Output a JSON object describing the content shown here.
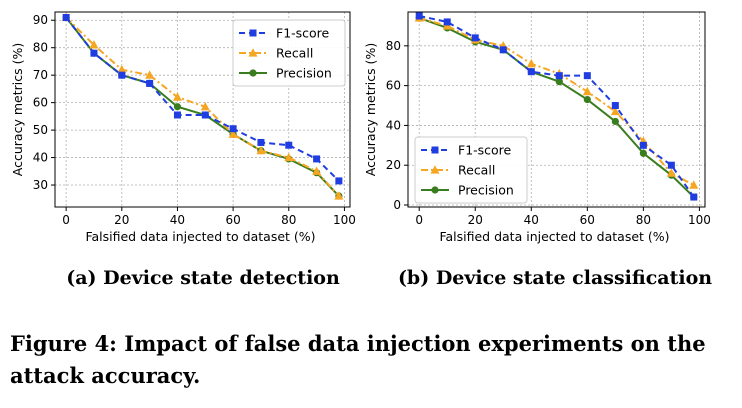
{
  "chart_data": [
    {
      "type": "line",
      "subcaption": "(a) Device state detection",
      "xlabel": "Falsified data injected to dataset (%)",
      "ylabel": "Accuracy metrics (%)",
      "xlim": [
        -4,
        102
      ],
      "ylim": [
        22,
        93
      ],
      "xticks": [
        0,
        20,
        40,
        60,
        80,
        100
      ],
      "yticks": [
        30,
        40,
        50,
        60,
        70,
        80,
        90
      ],
      "grid": true,
      "legend_position": "top-right",
      "x": [
        0,
        10,
        20,
        30,
        40,
        50,
        60,
        70,
        80,
        90,
        98
      ],
      "series": [
        {
          "name": "F1-score",
          "color": "#1f3de0",
          "linestyle": "dashed",
          "marker": "square",
          "values": [
            91,
            78,
            70,
            67,
            55.5,
            55.5,
            50.5,
            45.5,
            44.5,
            39.5,
            31.5
          ]
        },
        {
          "name": "Recall",
          "color": "#f5a623",
          "linestyle": "dashdot",
          "marker": "triangle",
          "values": [
            91,
            81,
            72,
            70,
            62,
            58.5,
            48.5,
            42.5,
            40,
            35,
            26
          ]
        },
        {
          "name": "Precision",
          "color": "#3a7d1e",
          "linestyle": "solid",
          "marker": "circle",
          "values": [
            91,
            78,
            70,
            67,
            58.5,
            55.5,
            48.5,
            42.5,
            39.5,
            34.5,
            26
          ]
        }
      ]
    },
    {
      "type": "line",
      "subcaption": "(b) Device state classification",
      "xlabel": "Falsified data injected to dataset (%)",
      "ylabel": "Accuracy metrics (%)",
      "xlim": [
        -4,
        102
      ],
      "ylim": [
        -1,
        97
      ],
      "xticks": [
        0,
        20,
        40,
        60,
        80,
        100
      ],
      "yticks": [
        0,
        20,
        40,
        60,
        80
      ],
      "grid": true,
      "legend_position": "bottom-left",
      "x": [
        0,
        10,
        20,
        30,
        40,
        50,
        60,
        70,
        80,
        90,
        98
      ],
      "series": [
        {
          "name": "F1-score",
          "color": "#1f3de0",
          "linestyle": "dashed",
          "marker": "square",
          "values": [
            95,
            92,
            84,
            78,
            67,
            65,
            65,
            50,
            30,
            20,
            4
          ]
        },
        {
          "name": "Recall",
          "color": "#f5a623",
          "linestyle": "dashdot",
          "marker": "triangle",
          "values": [
            94,
            90,
            83,
            80,
            71,
            66,
            57,
            47,
            32,
            16,
            10
          ]
        },
        {
          "name": "Precision",
          "color": "#3a7d1e",
          "linestyle": "solid",
          "marker": "circle",
          "values": [
            94,
            89,
            82,
            78,
            67,
            62,
            53,
            42,
            26,
            15,
            4
          ]
        }
      ]
    }
  ],
  "caption": "Figure 4: Impact of false data injection experiments on the attack accuracy."
}
